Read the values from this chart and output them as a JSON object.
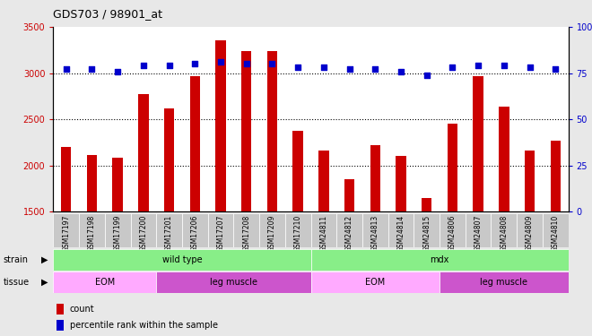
{
  "title": "GDS703 / 98901_at",
  "samples": [
    "GSM17197",
    "GSM17198",
    "GSM17199",
    "GSM17200",
    "GSM17201",
    "GSM17206",
    "GSM17207",
    "GSM17208",
    "GSM17209",
    "GSM17210",
    "GSM24811",
    "GSM24812",
    "GSM24813",
    "GSM24814",
    "GSM24815",
    "GSM24806",
    "GSM24807",
    "GSM24808",
    "GSM24809",
    "GSM24810"
  ],
  "counts": [
    2200,
    2110,
    2080,
    2775,
    2620,
    2970,
    3350,
    3240,
    3235,
    2380,
    2165,
    1855,
    2220,
    2100,
    1645,
    2450,
    2970,
    2640,
    2165,
    2265
  ],
  "percentile": [
    77,
    77,
    76,
    79,
    79,
    80,
    81,
    80,
    80,
    78,
    78,
    77,
    77,
    76,
    74,
    78,
    79,
    79,
    78,
    77
  ],
  "ylim_left": [
    1500,
    3500
  ],
  "ylim_right": [
    0,
    100
  ],
  "yticks_left": [
    1500,
    2000,
    2500,
    3000,
    3500
  ],
  "yticks_right": [
    0,
    25,
    50,
    75,
    100
  ],
  "bar_color": "#cc0000",
  "dot_color": "#0000cc",
  "bg_color": "#e8e8e8",
  "plot_bg": "#ffffff",
  "strain_wt_label": "wild type",
  "strain_mdx_label": "mdx",
  "strain_color": "#88ee88",
  "tissue_eom_color": "#ffaaff",
  "tissue_leg_color": "#cc55cc",
  "wt_count": 10,
  "mdx_count": 10,
  "wt_eom_count": 4,
  "wt_leg_count": 6,
  "mdx_eom_count": 5,
  "mdx_leg_count": 5,
  "legend_count_label": "count",
  "legend_pct_label": "percentile rank within the sample",
  "tick_label_color_left": "#cc0000",
  "tick_label_color_right": "#0000cc",
  "xtick_bg": "#c8c8c8",
  "grid_yticks": [
    2000,
    2500,
    3000
  ]
}
